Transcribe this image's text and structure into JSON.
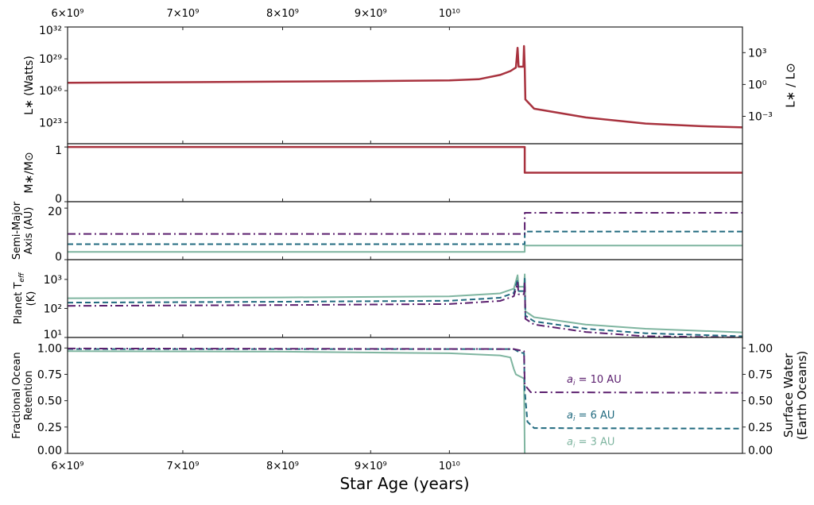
{
  "chart_data": {
    "type": "line",
    "xlabel": "Star Age (years)",
    "xscale": "log",
    "xlim": [
      6000000000.0,
      14800000000.0
    ],
    "xticks": [
      {
        "value": 6000000000.0,
        "label": "6×10⁹"
      },
      {
        "value": 7000000000.0,
        "label": "7×10⁹"
      },
      {
        "value": 8000000000.0,
        "label": "8×10⁹"
      },
      {
        "value": 9000000000.0,
        "label": "9×10⁹"
      },
      {
        "value": 10000000000.0,
        "label": "10¹⁰"
      }
    ],
    "colors": {
      "star": "#a8323e",
      "a3": "#7fb5a0",
      "a6": "#216a7f",
      "a10": "#5b1f6e"
    },
    "panels": [
      {
        "id": "luminosity",
        "ylabel": "L∗ (Watts)",
        "yscale": "log",
        "ylim": [
          1e+21,
          1e+32
        ],
        "yticks": [
          {
            "value": 1e+32,
            "label": "10³²"
          },
          {
            "value": 1e+29,
            "label": "10²⁹"
          },
          {
            "value": 1e+26,
            "label": "10²⁶"
          },
          {
            "value": 1e+23,
            "label": "10²³"
          }
        ],
        "right_ylabel": "L∗ / L⊙",
        "right_yticks": [
          {
            "value": 3.828e+29,
            "label": "10³"
          },
          {
            "value": 3.828e+26,
            "label": "10⁰"
          },
          {
            "value": 3.828e+23,
            "label": "10⁻³"
          }
        ],
        "series": [
          {
            "color_key": "star",
            "style": "solid",
            "points": [
              [
                6000000000.0,
                5.6e+26
              ],
              [
                7000000000.0,
                6.3e+26
              ],
              [
                8000000000.0,
                7.1e+26
              ],
              [
                9000000000.0,
                8e+26
              ],
              [
                10000000000.0,
                9.3e+26
              ],
              [
                10400000000.0,
                1.2e+27
              ],
              [
                10700000000.0,
                3e+27
              ],
              [
                10850000000.0,
                7e+27
              ],
              [
                10930000000.0,
                1.5e+28
              ],
              [
                10955000000.0,
                1.1e+30
              ],
              [
                10970000000.0,
                1.8e+28
              ],
              [
                11040000000.0,
                1.8e+28
              ],
              [
                11050000000.0,
                1.6e+30
              ],
              [
                11060000000.0,
                1.6e+28
              ],
              [
                11070000000.0,
                1.5e+25
              ],
              [
                11200000000.0,
                2e+24
              ],
              [
                12000000000.0,
                3e+23
              ],
              [
                13000000000.0,
                8e+22
              ],
              [
                14000000000.0,
                4.5e+22
              ],
              [
                14800000000.0,
                3.5e+22
              ]
            ]
          }
        ]
      },
      {
        "id": "mass",
        "ylabel": "M∗/M⊙",
        "yscale": "linear",
        "ylim": [
          0,
          1.06
        ],
        "yticks": [
          {
            "value": 1,
            "label": "1"
          },
          {
            "value": 0,
            "label": "0"
          }
        ],
        "series": [
          {
            "color_key": "star",
            "style": "solid",
            "points": [
              [
                6000000000.0,
                1
              ],
              [
                11060000000.0,
                1
              ],
              [
                11060000000.0,
                0.53
              ],
              [
                14800000000.0,
                0.53
              ]
            ]
          }
        ]
      },
      {
        "id": "semimajor",
        "ylabel": "Semi-Major|Axis (AU)",
        "yscale": "linear",
        "ylim": [
          0,
          22.5
        ],
        "yticks": [
          {
            "value": 20,
            "label": "20"
          },
          {
            "value": 0,
            "label": "0"
          }
        ],
        "series": [
          {
            "color_key": "a3",
            "style": "solid",
            "points": [
              [
                6000000000.0,
                3
              ],
              [
                11060000000.0,
                3
              ],
              [
                11060000000.0,
                5.5
              ],
              [
                14800000000.0,
                5.5
              ]
            ]
          },
          {
            "color_key": "a6",
            "style": "dashed",
            "points": [
              [
                6000000000.0,
                6
              ],
              [
                11060000000.0,
                6
              ],
              [
                11060000000.0,
                10.9
              ],
              [
                14800000000.0,
                10.9
              ]
            ]
          },
          {
            "color_key": "a10",
            "style": "dashdot",
            "points": [
              [
                6000000000.0,
                10
              ],
              [
                11060000000.0,
                10
              ],
              [
                11060000000.0,
                18.2
              ],
              [
                14800000000.0,
                18.2
              ]
            ]
          }
        ]
      },
      {
        "id": "teff",
        "ylabel": "Planet T|eff|(K)",
        "yscale": "log",
        "ylim": [
          10,
          4800
        ],
        "yticks": [
          {
            "value": 1000,
            "label": "10³"
          },
          {
            "value": 100,
            "label": "10²"
          },
          {
            "value": 10,
            "label": "10¹"
          }
        ],
        "series": [
          {
            "color_key": "a3",
            "style": "solid",
            "points": [
              [
                6000000000.0,
                225
              ],
              [
                8000000000.0,
                240
              ],
              [
                10000000000.0,
                260
              ],
              [
                10700000000.0,
                330
              ],
              [
                10900000000.0,
                480
              ],
              [
                10955000000.0,
                1400
              ],
              [
                10970000000.0,
                560
              ],
              [
                11050000000.0,
                560
              ],
              [
                11060000000.0,
                1500
              ],
              [
                11070000000.0,
                80
              ],
              [
                11200000000.0,
                50
              ],
              [
                12000000000.0,
                28
              ],
              [
                13000000000.0,
                20
              ],
              [
                14800000000.0,
                15
              ]
            ]
          },
          {
            "color_key": "a6",
            "style": "dashed",
            "points": [
              [
                6000000000.0,
                159
              ],
              [
                8000000000.0,
                170
              ],
              [
                10000000000.0,
                184
              ],
              [
                10700000000.0,
                233
              ],
              [
                10900000000.0,
                340
              ],
              [
                10955000000.0,
                990
              ],
              [
                10970000000.0,
                396
              ],
              [
                11050000000.0,
                396
              ],
              [
                11060000000.0,
                1060
              ],
              [
                11070000000.0,
                57
              ],
              [
                11200000000.0,
                36
              ],
              [
                12000000000.0,
                20
              ],
              [
                13000000000.0,
                14
              ],
              [
                14800000000.0,
                11
              ]
            ]
          },
          {
            "color_key": "a10",
            "style": "dashdot",
            "points": [
              [
                6000000000.0,
                123
              ],
              [
                8000000000.0,
                131
              ],
              [
                10000000000.0,
                142
              ],
              [
                10700000000.0,
                181
              ],
              [
                10900000000.0,
                263
              ],
              [
                10955000000.0,
                767
              ],
              [
                10970000000.0,
                307
              ],
              [
                11050000000.0,
                307
              ],
              [
                11060000000.0,
                820
              ],
              [
                11070000000.0,
                44
              ],
              [
                11200000000.0,
                28
              ],
              [
                12000000000.0,
                15.4
              ],
              [
                13000000000.0,
                11
              ],
              [
                14800000000.0,
                10
              ]
            ]
          }
        ]
      },
      {
        "id": "retention",
        "ylabel": "Fractional Ocean|Retention",
        "yscale": "linear",
        "ylim": [
          0,
          1.1
        ],
        "yticks": [
          {
            "value": 1,
            "label": "1.00"
          },
          {
            "value": 0.75,
            "label": "0.75"
          },
          {
            "value": 0.5,
            "label": "0.50"
          },
          {
            "value": 0.25,
            "label": "0.25"
          },
          {
            "value": 0,
            "label": "0.00"
          }
        ],
        "right_ylabel": "Surface Water|(Earth Oceans)",
        "right_yticks": [
          {
            "value": 1,
            "label": "1.00"
          },
          {
            "value": 0.75,
            "label": "0.75"
          },
          {
            "value": 0.5,
            "label": "0.50"
          },
          {
            "value": 0.25,
            "label": "0.25"
          },
          {
            "value": 0,
            "label": "0.00"
          }
        ],
        "series": [
          {
            "color_key": "a3",
            "style": "solid",
            "points": [
              [
                6000000000.0,
                0.97
              ],
              [
                8000000000.0,
                0.965
              ],
              [
                10000000000.0,
                0.95
              ],
              [
                10700000000.0,
                0.93
              ],
              [
                10850000000.0,
                0.91
              ],
              [
                10900000000.0,
                0.8
              ],
              [
                10930000000.0,
                0.75
              ],
              [
                11050000000.0,
                0.71
              ],
              [
                11060000000.0,
                0
              ]
            ]
          },
          {
            "color_key": "a6",
            "style": "dashed",
            "points": [
              [
                6000000000.0,
                0.99
              ],
              [
                10900000000.0,
                0.99
              ],
              [
                10980000000.0,
                0.96
              ],
              [
                11050000000.0,
                0.95
              ],
              [
                11060000000.0,
                0.6
              ],
              [
                11100000000.0,
                0.3
              ],
              [
                11200000000.0,
                0.24
              ],
              [
                14800000000.0,
                0.235
              ]
            ]
          },
          {
            "color_key": "a10",
            "style": "dashdot",
            "points": [
              [
                6000000000.0,
                0.995
              ],
              [
                10900000000.0,
                0.99
              ],
              [
                11050000000.0,
                0.97
              ],
              [
                11060000000.0,
                0.65
              ],
              [
                11150000000.0,
                0.58
              ],
              [
                14800000000.0,
                0.575
              ]
            ]
          }
        ],
        "annotations": [
          {
            "text": "a",
            "sub": "i",
            "rest": " = 10 AU",
            "color_key": "a10",
            "x": 11700000000.0,
            "y": 0.67
          },
          {
            "text": "a",
            "sub": "i",
            "rest": " = 6 AU",
            "color_key": "a6",
            "x": 11700000000.0,
            "y": 0.33
          },
          {
            "text": "a",
            "sub": "i",
            "rest": " = 3 AU",
            "color_key": "a3",
            "x": 11700000000.0,
            "y": 0.08
          }
        ]
      }
    ]
  }
}
